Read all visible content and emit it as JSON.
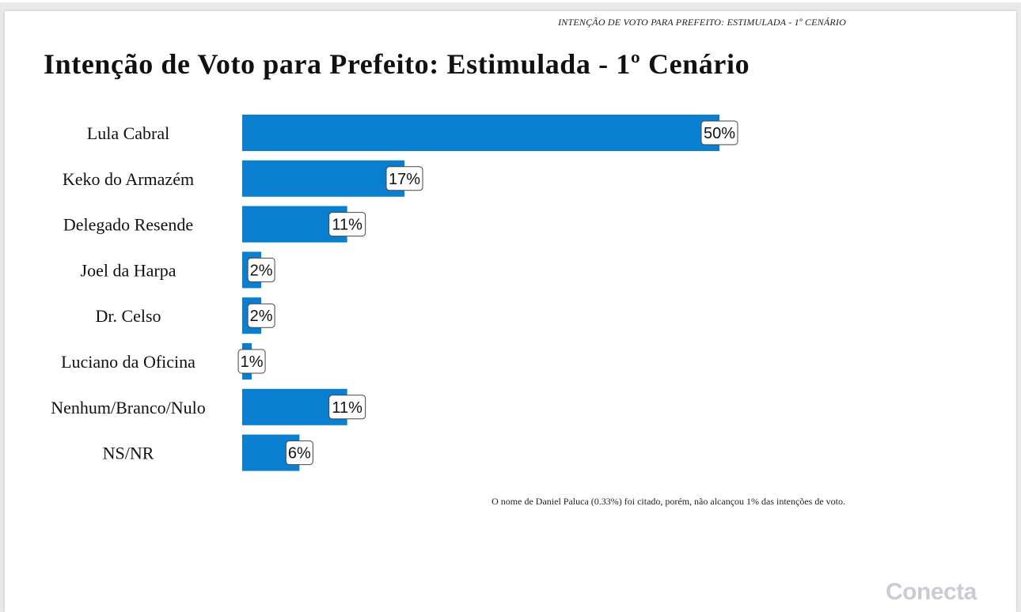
{
  "page": {
    "running_header": "INTENÇÃO DE VOTO PARA PREFEITO: ESTIMULADA - 1º CENÁRIO",
    "footnote": "O nome de Daniel Paluca (0.33%) foi citado, porém, não alcançou 1% das intenções de voto.",
    "logo_text": "Conecta"
  },
  "chart_data": {
    "type": "bar",
    "orientation": "horizontal",
    "title": "Intenção de Voto para Prefeito: Estimulada - 1º Cenário",
    "categories": [
      "Lula Cabral",
      "Keko do Armazém",
      "Delegado Resende",
      "Joel da Harpa",
      "Dr. Celso",
      "Luciano da Oficina",
      "Nenhum/Branco/Nulo",
      "NS/NR"
    ],
    "values": [
      50,
      17,
      11,
      2,
      2,
      1,
      11,
      6
    ],
    "data_labels": [
      "50%",
      "17%",
      "11%",
      "2%",
      "2%",
      "1%",
      "11%",
      "6%"
    ],
    "unit": "%",
    "xlim": [
      0,
      50
    ],
    "bar_color": "#0a7fcf",
    "grid": false,
    "legend": "none"
  }
}
